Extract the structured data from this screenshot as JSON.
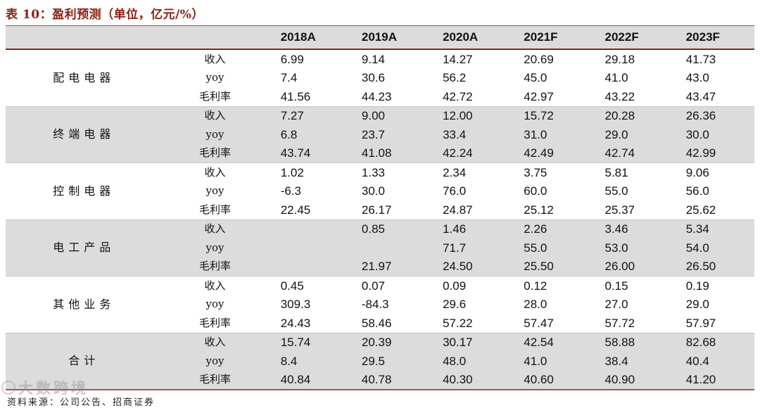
{
  "title": "表 10：盈利预测（单位，亿元/%）",
  "footer": {
    "source": "资料来源：公司公告、招商证券"
  },
  "watermark": "大数跨境",
  "colors": {
    "accent": "#8b2114",
    "table_line": "#7d2c22",
    "row_shade": "#dcdcdc",
    "text": "#111111"
  },
  "chart_data": {
    "type": "table",
    "title": "表 10：盈利预测（单位，亿元/%）",
    "col_headers": [
      "2018A",
      "2019A",
      "2020A",
      "2021F",
      "2022F",
      "2023F"
    ],
    "metric_labels": [
      "收入",
      "yoy",
      "毛利率"
    ],
    "groups": [
      {
        "name": "配电电器",
        "rows": [
          [
            "6.99",
            "9.14",
            "14.27",
            "20.69",
            "29.18",
            "41.73"
          ],
          [
            "7.4",
            "30.6",
            "56.2",
            "45.0",
            "41.0",
            "43.0"
          ],
          [
            "41.56",
            "44.23",
            "42.72",
            "42.97",
            "43.22",
            "43.47"
          ]
        ]
      },
      {
        "name": "终端电器",
        "rows": [
          [
            "7.27",
            "9.00",
            "12.00",
            "15.72",
            "20.28",
            "26.36"
          ],
          [
            "6.8",
            "23.7",
            "33.4",
            "31.0",
            "29.0",
            "30.0"
          ],
          [
            "43.74",
            "41.08",
            "42.24",
            "42.49",
            "42.74",
            "42.99"
          ]
        ]
      },
      {
        "name": "控制电器",
        "rows": [
          [
            "1.02",
            "1.33",
            "2.34",
            "3.75",
            "5.81",
            "9.06"
          ],
          [
            "-6.3",
            "30.0",
            "76.0",
            "60.0",
            "55.0",
            "56.0"
          ],
          [
            "22.45",
            "26.17",
            "24.87",
            "25.12",
            "25.37",
            "25.62"
          ]
        ]
      },
      {
        "name": "电工产品",
        "rows": [
          [
            "",
            "0.85",
            "1.46",
            "2.26",
            "3.46",
            "5.34"
          ],
          [
            "",
            "",
            "71.7",
            "55.0",
            "53.0",
            "54.0"
          ],
          [
            "",
            "21.97",
            "24.50",
            "25.50",
            "26.00",
            "26.50"
          ]
        ]
      },
      {
        "name": "其他业务",
        "rows": [
          [
            "0.45",
            "0.07",
            "0.09",
            "0.12",
            "0.15",
            "0.19"
          ],
          [
            "309.3",
            "-84.3",
            "29.6",
            "28.0",
            "27.0",
            "29.0"
          ],
          [
            "24.43",
            "58.46",
            "57.22",
            "57.47",
            "57.72",
            "57.97"
          ]
        ]
      },
      {
        "name": "合计",
        "rows": [
          [
            "15.74",
            "20.39",
            "30.17",
            "42.54",
            "58.88",
            "82.68"
          ],
          [
            "8.4",
            "29.5",
            "48.0",
            "41.0",
            "38.4",
            "40.4"
          ],
          [
            "40.84",
            "40.78",
            "40.30",
            "40.60",
            "40.90",
            "41.20"
          ]
        ]
      }
    ]
  }
}
